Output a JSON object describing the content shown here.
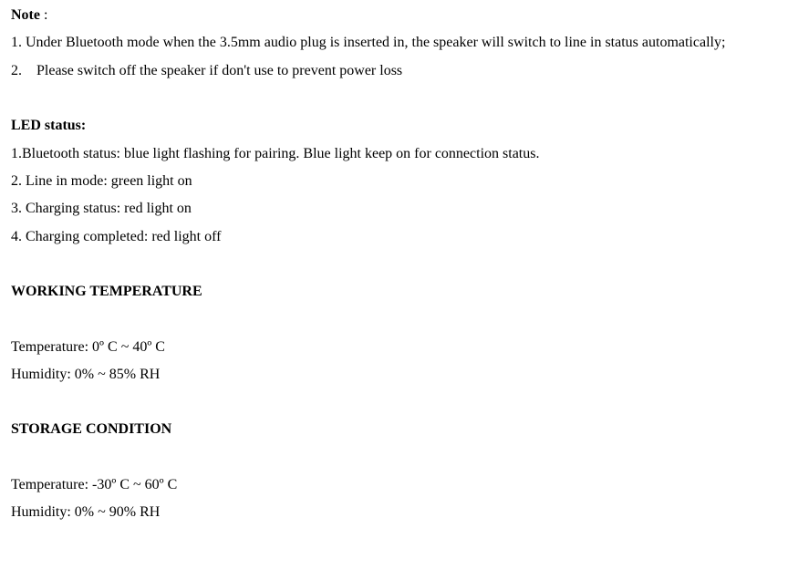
{
  "note": {
    "heading": "Note",
    "colon": " :",
    "item1": "1. Under Bluetooth mode when the 3.5mm audio plug is inserted in, the speaker will switch to line in status automatically;",
    "item2_num": "2.",
    "item2_text": "Please switch off the speaker if don't use to prevent power loss"
  },
  "led": {
    "heading": "LED status:",
    "item1": "1.Bluetooth status: blue light flashing for pairing. Blue light keep on for connection status.",
    "item2": "2. Line in mode: green light on",
    "item3": "3. Charging status: red light on",
    "item4": "4. Charging completed: red light off"
  },
  "working_temp": {
    "heading": "WORKING TEMPERATURE",
    "temp": "Temperature: 0º C ~ 40º C",
    "humidity": "Humidity: 0% ~ 85% RH"
  },
  "storage": {
    "heading": "STORAGE CONDITION",
    "temp": "Temperature: -30º C ~ 60º C",
    "humidity": "Humidity: 0% ~ 90% RH"
  }
}
